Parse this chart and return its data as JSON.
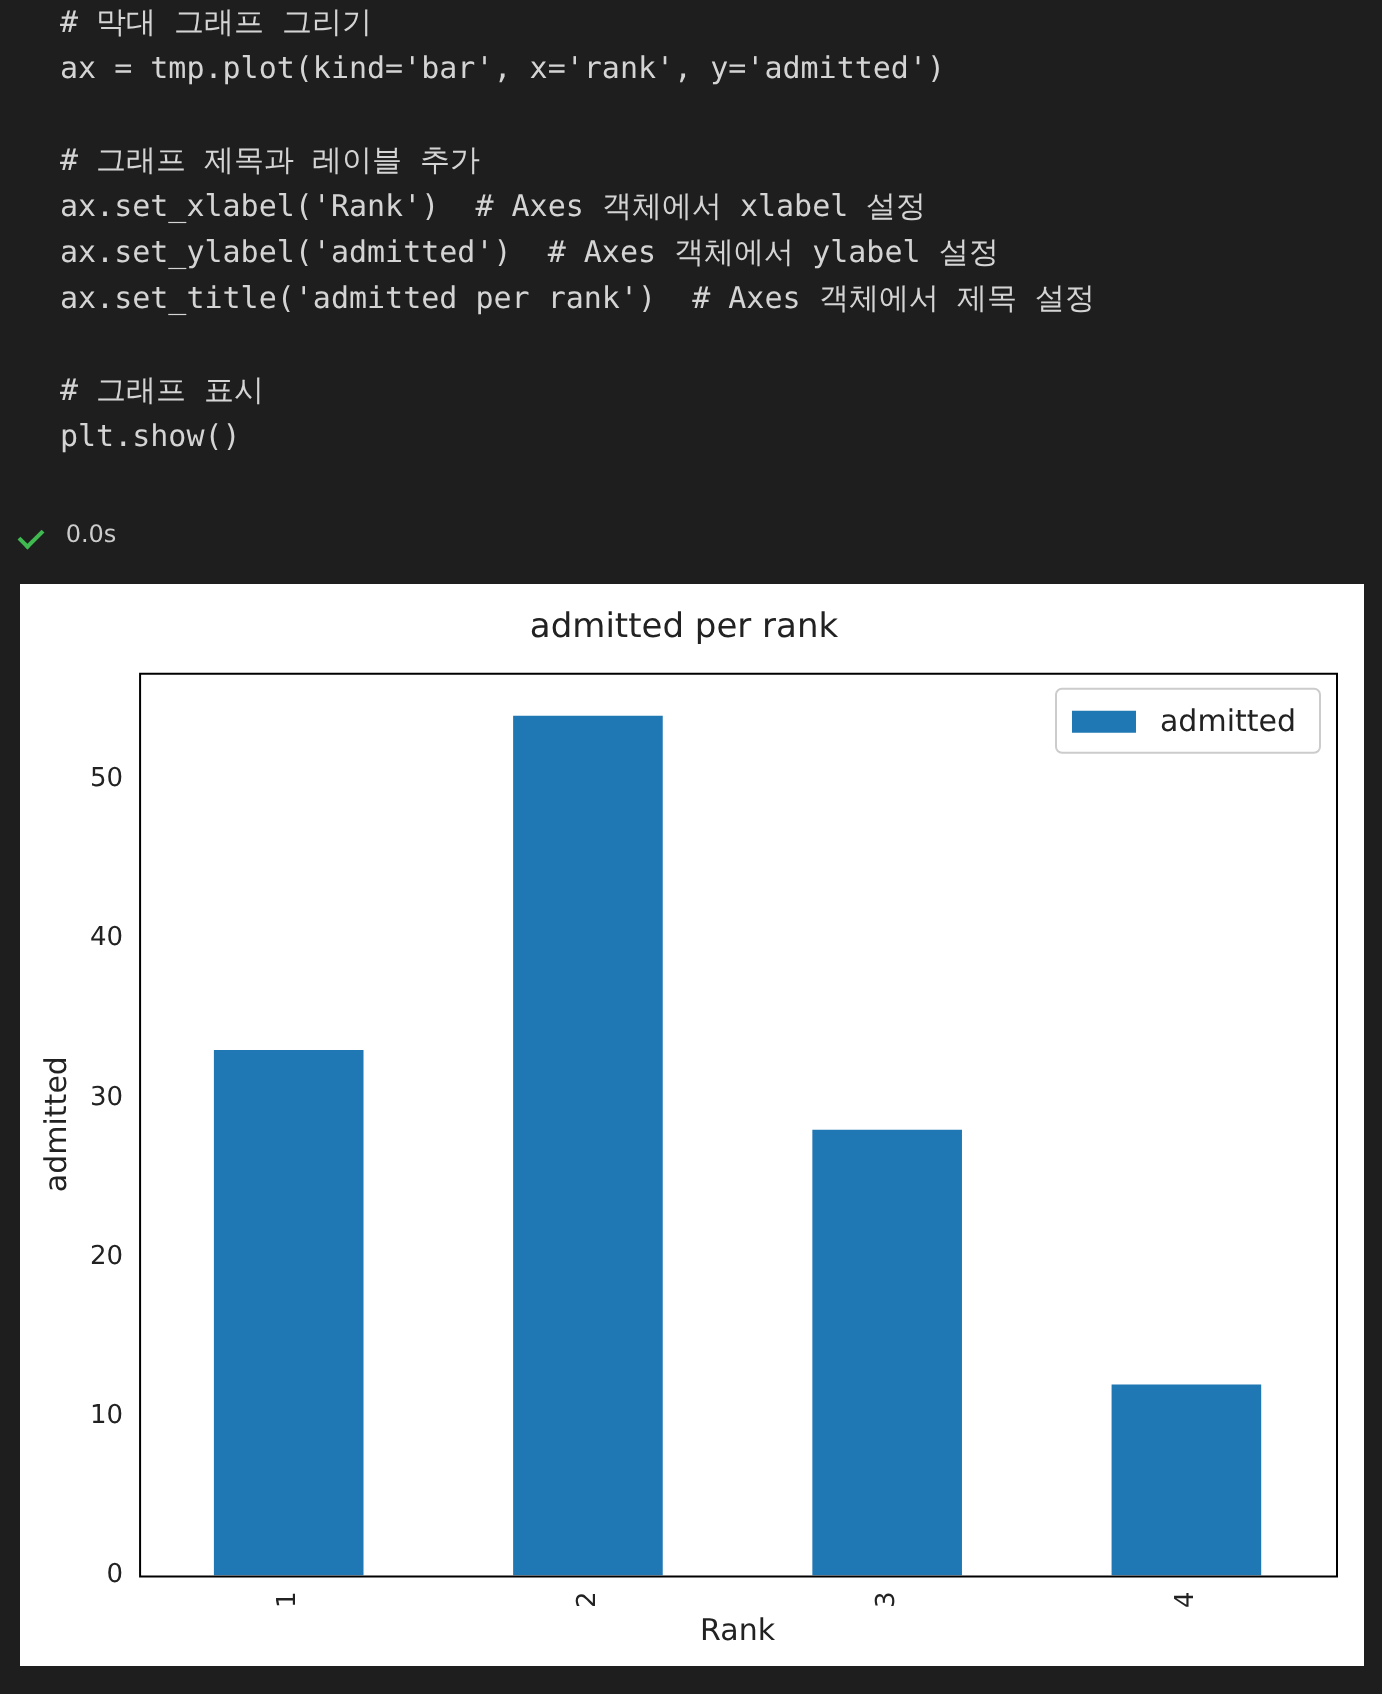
{
  "chart_data": {
    "type": "bar",
    "title": "admitted per rank",
    "xlabel": "Rank",
    "ylabel": "admitted",
    "categories": [
      "1",
      "2",
      "3",
      "4"
    ],
    "series": [
      {
        "name": "admitted",
        "color": "#1f77b4",
        "values": [
          33,
          54,
          28,
          12
        ]
      }
    ],
    "ylim": [
      0,
      56.7
    ],
    "yticks": [
      0,
      10,
      20,
      30,
      40,
      50
    ],
    "grid": false,
    "legend": "top right",
    "annotations": [
      "# 막대 그래프 그리기",
      "ax = tmp.plot(kind='bar', x='rank', y='admitted')",
      "# 그래프 제목과 레이블 추가",
      "ax.set_xlabel('Rank')  # Axes 객체에서 xlabel 설정",
      "ax.set_ylabel('admitted')  # Axes 객체에서 ylabel 설정",
      "ax.set_title('admitted per rank')  # Axes 객체에서 제목 설정",
      "# 그래프 표시",
      "plt.show()",
      "0.0s"
    ]
  }
}
